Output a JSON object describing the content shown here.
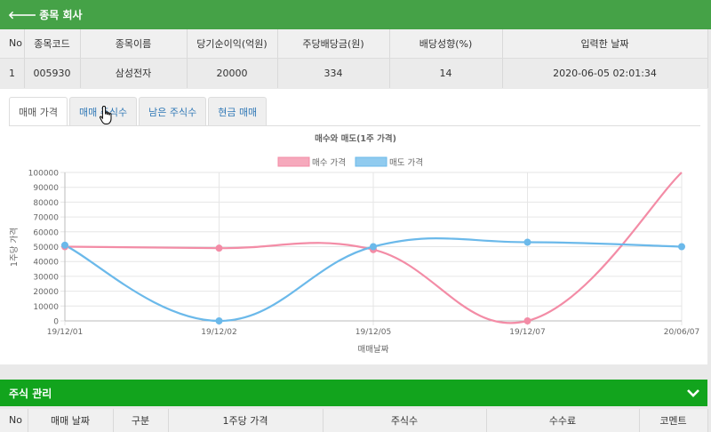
{
  "header": {
    "back_icon": "arrow-left-icon",
    "title": "종목 회사"
  },
  "company_table": {
    "columns": [
      "No",
      "종목코드",
      "종목이름",
      "당기순이익(억원)",
      "주당배당금(원)",
      "배당성향(%)",
      "입력한 날짜"
    ],
    "rows": [
      [
        "1",
        "005930",
        "삼성전자",
        "20000",
        "334",
        "14",
        "2020-06-05 02:01:34"
      ]
    ]
  },
  "tabs": [
    {
      "label": "매매 가격",
      "active": true
    },
    {
      "label": "매매 주식수",
      "active": false
    },
    {
      "label": "남은 주식수",
      "active": false
    },
    {
      "label": "현금 매매",
      "active": false
    }
  ],
  "chart_data": {
    "type": "line",
    "title": "매수와 매도(1주 가격)",
    "xlabel": "매매날짜",
    "ylabel": "1주당 가격",
    "categories": [
      "19/12/01",
      "19/12/02",
      "19/12/05",
      "19/12/07",
      "20/06/07"
    ],
    "ylim": [
      0,
      100000
    ],
    "yticks": [
      "100000",
      "90000",
      "80000",
      "70000",
      "60000",
      "50000",
      "40000",
      "30000",
      "20000",
      "10000",
      "0"
    ],
    "legend_position": "top",
    "grid": true,
    "series": [
      {
        "name": "매수 가격",
        "color": "#f38ca6",
        "values": [
          50000,
          49000,
          48000,
          0,
          100000
        ],
        "show_last_marker": false
      },
      {
        "name": "매도 가격",
        "color": "#6bb9ea",
        "values": [
          51000,
          0,
          50000,
          53000,
          50000
        ],
        "show_last_marker": true
      }
    ]
  },
  "stock_section": {
    "title": "주식 관리",
    "toggle_icon": "chevron-down-icon",
    "columns": [
      "No",
      "매매 날짜",
      "구분",
      "1주당 가격",
      "주식수",
      "수수료",
      "코멘트"
    ]
  }
}
